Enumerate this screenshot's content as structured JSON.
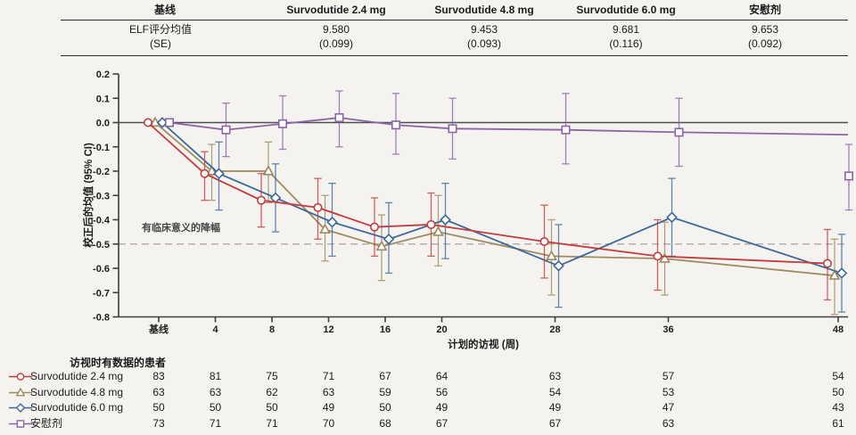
{
  "top_table": {
    "headers": [
      "基线",
      "Survodutide 2.4 mg",
      "Survodutide 4.8 mg",
      "Survodutide 6.0 mg",
      "安慰剂"
    ],
    "row_label_line1": "ELF评分均值",
    "row_label_line2": "(SE)",
    "means": [
      "9.580",
      "9.453",
      "9.681",
      "9.653"
    ],
    "ses": [
      "(0.099)",
      "(0.093)",
      "(0.116)",
      "(0.092)"
    ]
  },
  "chart_data": {
    "type": "line",
    "title": "",
    "ylabel": "校正后的均值 (95% CI)",
    "xlabel": "计划的访视 (周)",
    "ylim": [
      -0.8,
      0.2
    ],
    "yticks": [
      0.2,
      0.1,
      0.0,
      -0.1,
      -0.2,
      -0.3,
      -0.4,
      -0.5,
      -0.6,
      -0.7,
      -0.8
    ],
    "weeks": [
      0,
      4,
      8,
      12,
      16,
      20,
      28,
      36,
      48
    ],
    "x_tick_labels": [
      "基线",
      "4",
      "8",
      "12",
      "16",
      "20",
      "28",
      "36",
      "48"
    ],
    "grid": false,
    "threshold": {
      "value": -0.5,
      "label": "有临床意义的降幅"
    },
    "axis_color": "#3f3f3f",
    "zero_line_color": "#4f4f4f",
    "threshold_color": "#b3b0ad",
    "series": [
      {
        "key": "surv24",
        "name": "Survodutide 2.4 mg",
        "color": "#c43c3c",
        "marker": "circle",
        "values": [
          0,
          -0.21,
          -0.32,
          -0.35,
          -0.43,
          -0.42,
          -0.49,
          -0.55,
          -0.58
        ],
        "ci_high": [
          null,
          -0.12,
          -0.21,
          -0.23,
          -0.31,
          -0.29,
          -0.34,
          -0.4,
          -0.44
        ],
        "ci_low": [
          null,
          -0.32,
          -0.43,
          -0.48,
          -0.55,
          -0.55,
          -0.64,
          -0.69,
          -0.73
        ]
      },
      {
        "key": "surv48",
        "name": "Survodutide 4.8 mg",
        "color": "#a08a5f",
        "marker": "triangle",
        "values": [
          0,
          -0.2,
          -0.2,
          -0.44,
          -0.51,
          -0.45,
          -0.55,
          -0.56,
          -0.63
        ],
        "ci_high": [
          null,
          -0.09,
          -0.08,
          -0.3,
          -0.38,
          -0.3,
          -0.4,
          -0.41,
          -0.48
        ],
        "ci_low": [
          null,
          -0.32,
          -0.33,
          -0.57,
          -0.65,
          -0.59,
          -0.71,
          -0.71,
          -0.79
        ]
      },
      {
        "key": "surv60",
        "name": "Survodutide 6.0 mg",
        "color": "#3c699b",
        "marker": "diamond",
        "values": [
          0,
          -0.21,
          -0.31,
          -0.41,
          -0.48,
          -0.4,
          -0.59,
          -0.39,
          -0.62
        ],
        "ci_high": [
          null,
          -0.08,
          -0.17,
          -0.25,
          -0.33,
          -0.25,
          -0.42,
          -0.23,
          -0.46
        ],
        "ci_low": [
          null,
          -0.36,
          -0.45,
          -0.55,
          -0.62,
          -0.56,
          -0.76,
          -0.55,
          -0.78
        ]
      },
      {
        "key": "placebo",
        "name": "安慰剂",
        "color": "#8c64aa",
        "marker": "square",
        "values": [
          0,
          -0.03,
          -0.005,
          0.02,
          -0.01,
          -0.025,
          -0.03,
          -0.04,
          -0.22
        ],
        "ci_high": [
          null,
          0.08,
          0.11,
          0.13,
          0.12,
          0.1,
          0.12,
          0.1,
          -0.09
        ],
        "ci_low": [
          null,
          -0.14,
          -0.11,
          -0.1,
          -0.13,
          -0.15,
          -0.17,
          -0.18,
          -0.36
        ],
        "detached_last_point": true,
        "line_extension_value": -0.05
      }
    ]
  },
  "bottom_table": {
    "title": "访视时有数据的患者",
    "rows": [
      {
        "name": "Survodutide 2.4 mg",
        "counts": [
          "83",
          "81",
          "75",
          "71",
          "67",
          "64",
          "63",
          "57",
          "54"
        ]
      },
      {
        "name": "Survodutide 4.8 mg",
        "counts": [
          "63",
          "63",
          "62",
          "63",
          "59",
          "56",
          "54",
          "53",
          "50"
        ]
      },
      {
        "name": "Survodutide 6.0 mg",
        "counts": [
          "50",
          "50",
          "50",
          "49",
          "50",
          "49",
          "49",
          "47",
          "43"
        ]
      },
      {
        "name": "安慰剂",
        "counts": [
          "73",
          "71",
          "71",
          "70",
          "68",
          "67",
          "67",
          "63",
          "61"
        ]
      }
    ]
  }
}
